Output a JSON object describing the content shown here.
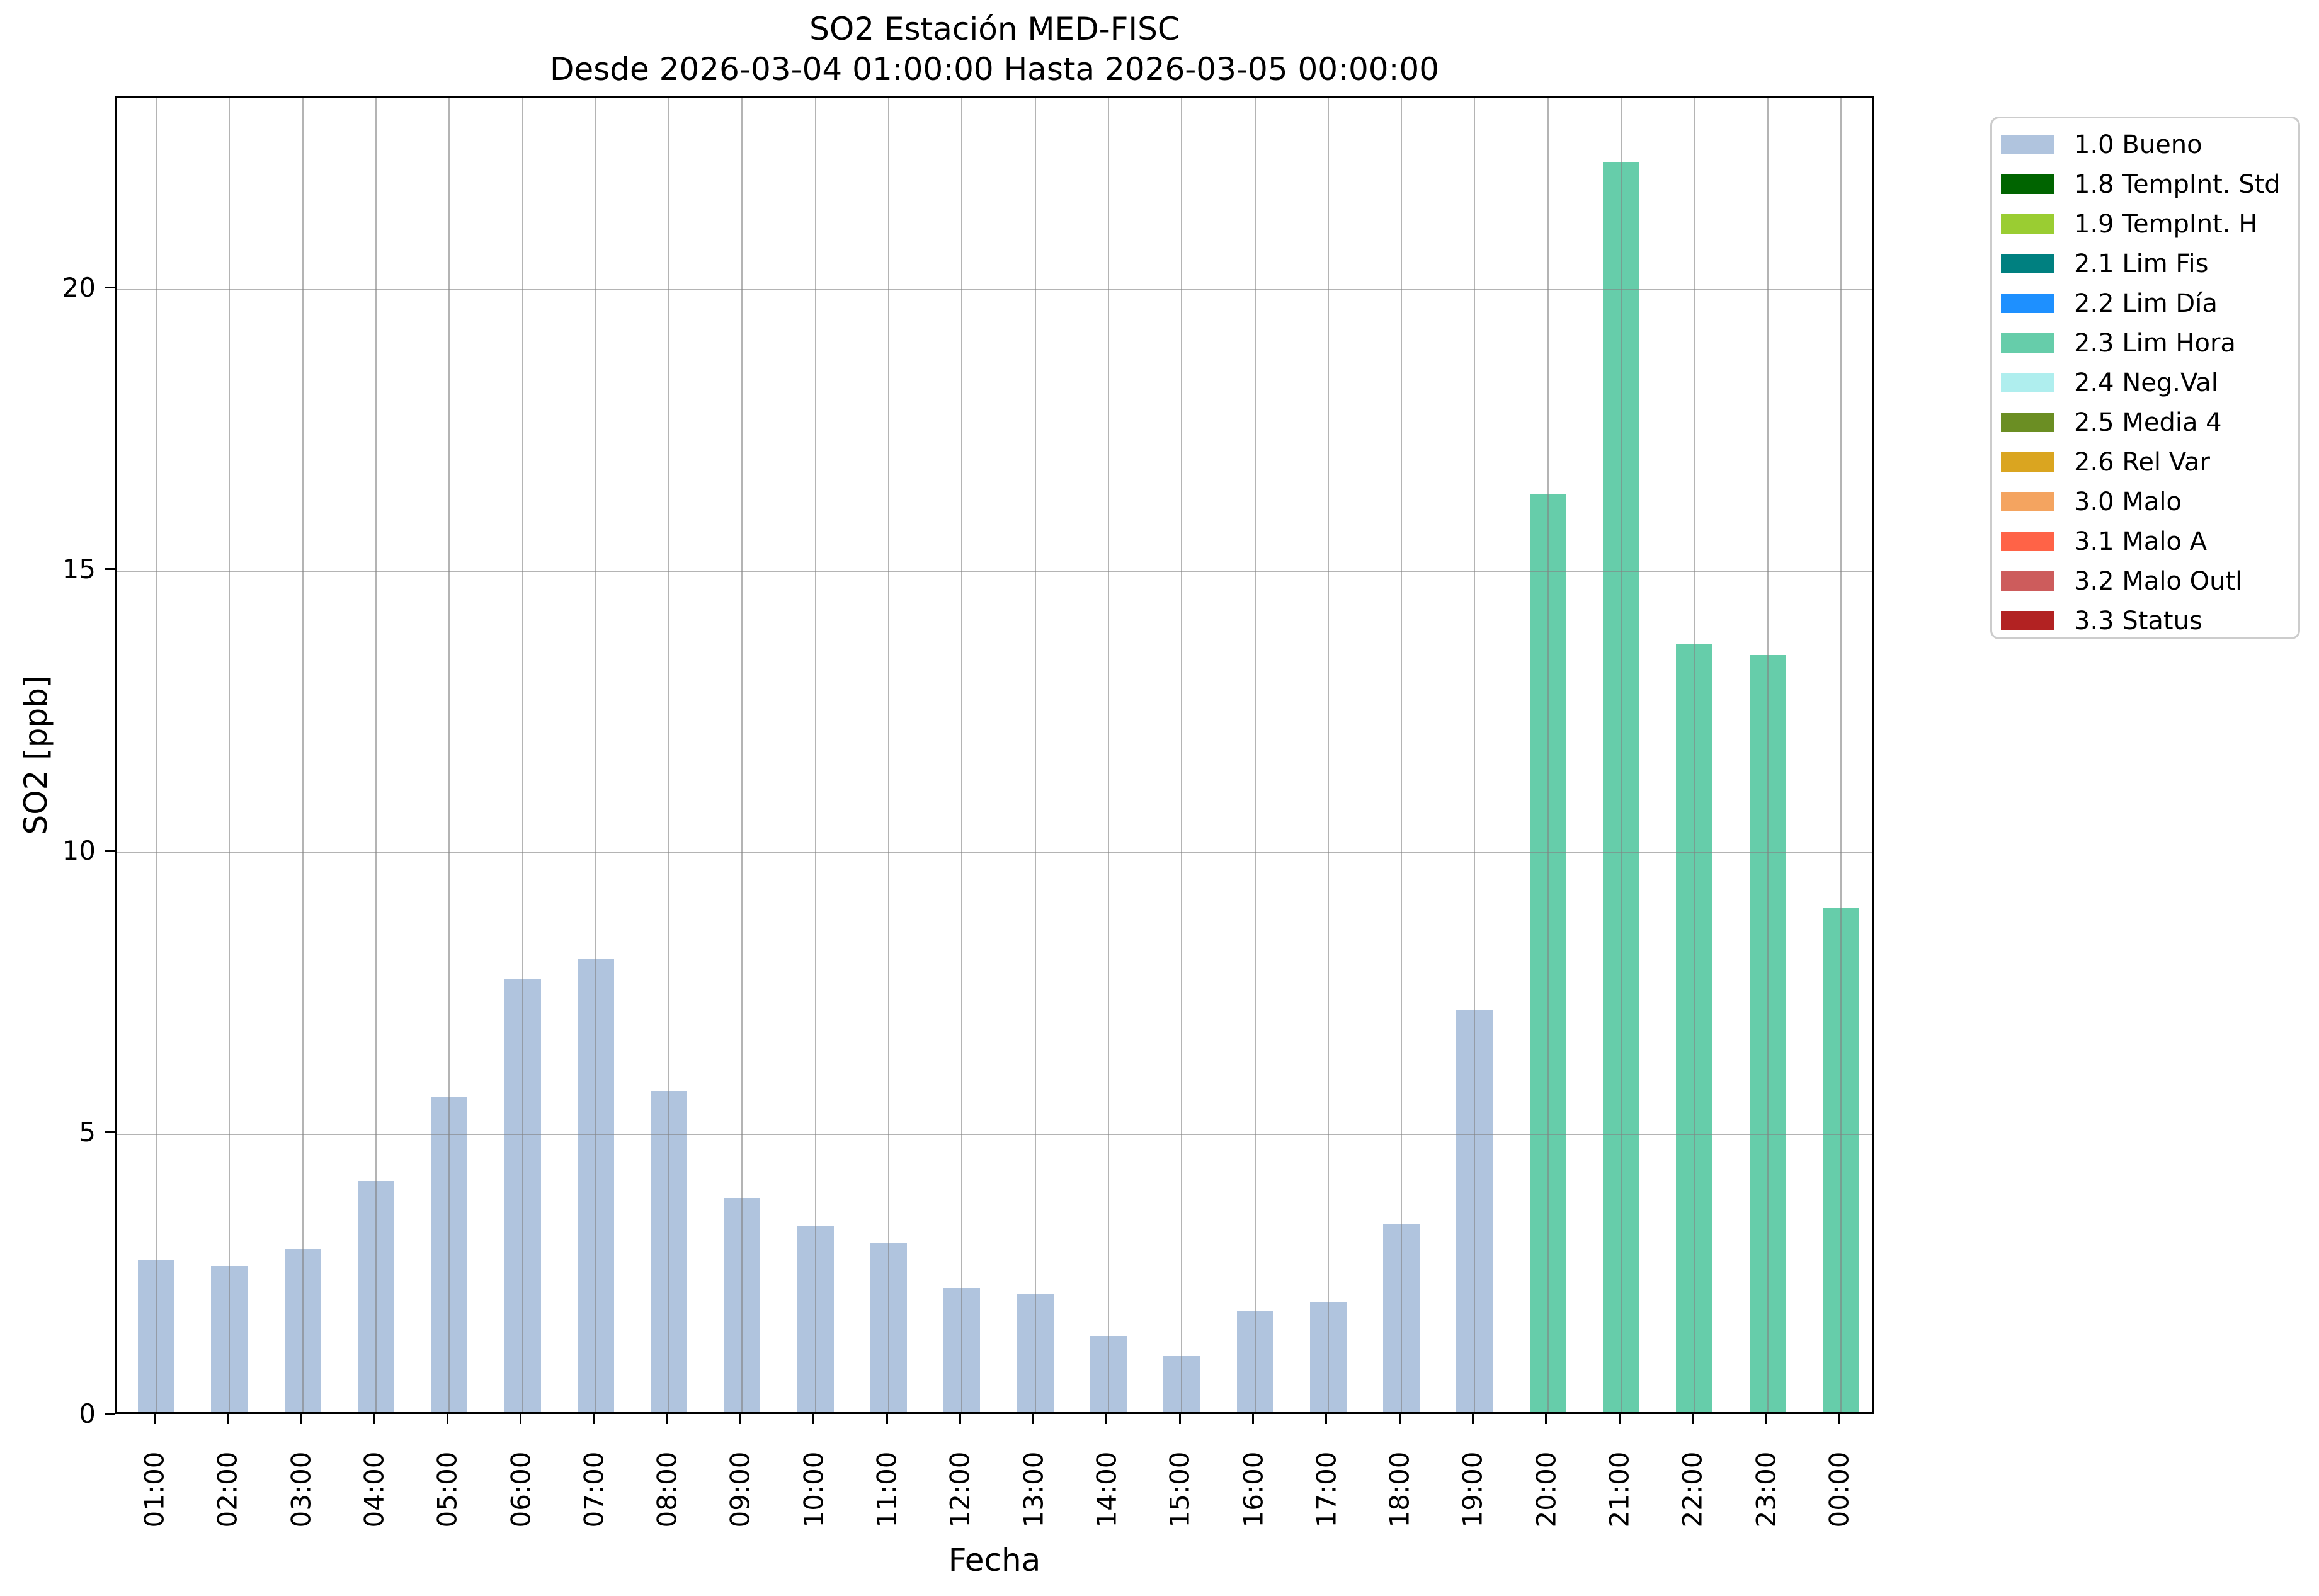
{
  "chart_data": {
    "type": "bar",
    "title": "SO2 Estación MED-FISC",
    "subtitle": "Desde 2026-03-04 01:00:00 Hasta 2026-03-05 00:00:00",
    "xlabel": "Fecha",
    "ylabel": "SO2 [ppb]",
    "ylim": [
      0,
      23.4
    ],
    "yticks": [
      0,
      5,
      10,
      15,
      20
    ],
    "grid": true,
    "legend_position": "outside upper right",
    "categories": [
      "01:00",
      "02:00",
      "03:00",
      "04:00",
      "05:00",
      "06:00",
      "07:00",
      "08:00",
      "09:00",
      "10:00",
      "11:00",
      "12:00",
      "13:00",
      "14:00",
      "15:00",
      "16:00",
      "17:00",
      "18:00",
      "19:00",
      "20:00",
      "21:00",
      "22:00",
      "23:00",
      "00:00"
    ],
    "values": [
      2.7,
      2.6,
      2.9,
      4.1,
      5.6,
      7.7,
      8.05,
      5.7,
      3.8,
      3.3,
      3.0,
      2.2,
      2.1,
      1.35,
      1.0,
      1.8,
      1.95,
      3.35,
      7.15,
      16.3,
      22.2,
      13.65,
      13.45,
      8.95
    ],
    "bar_status": [
      "1.0 Bueno",
      "1.0 Bueno",
      "1.0 Bueno",
      "1.0 Bueno",
      "1.0 Bueno",
      "1.0 Bueno",
      "1.0 Bueno",
      "1.0 Bueno",
      "1.0 Bueno",
      "1.0 Bueno",
      "1.0 Bueno",
      "1.0 Bueno",
      "1.0 Bueno",
      "1.0 Bueno",
      "1.0 Bueno",
      "1.0 Bueno",
      "1.0 Bueno",
      "1.0 Bueno",
      "1.0 Bueno",
      "2.3 Lim Hora",
      "2.3 Lim Hora",
      "2.3 Lim Hora",
      "2.3 Lim Hora",
      "2.3 Lim Hora"
    ],
    "status_colors": {
      "1.0 Bueno": "#b0c4de",
      "2.3 Lim Hora": "#66cdaa"
    },
    "legend": {
      "items": [
        {
          "label": "1.0 Bueno",
          "color": "#b0c4de"
        },
        {
          "label": "1.8 TempInt. Std",
          "color": "#006400"
        },
        {
          "label": "1.9 TempInt. H",
          "color": "#9acd32"
        },
        {
          "label": "2.1 Lim Fis",
          "color": "#008080"
        },
        {
          "label": "2.2 Lim Día",
          "color": "#1e90ff"
        },
        {
          "label": "2.3 Lim Hora",
          "color": "#66cdaa"
        },
        {
          "label": "2.4 Neg.Val",
          "color": "#afeeee"
        },
        {
          "label": "2.5 Media 4",
          "color": "#6b8e23"
        },
        {
          "label": "2.6 Rel Var",
          "color": "#daa520"
        },
        {
          "label": "3.0 Malo",
          "color": "#f4a460"
        },
        {
          "label": "3.1 Malo A",
          "color": "#ff6347"
        },
        {
          "label": "3.2 Malo Outl",
          "color": "#cd5c5c"
        },
        {
          "label": "3.3 Status",
          "color": "#b22222"
        }
      ]
    }
  }
}
